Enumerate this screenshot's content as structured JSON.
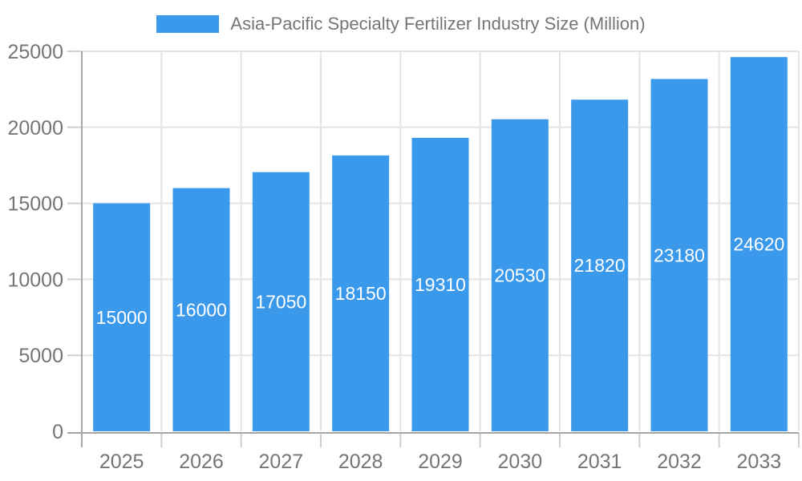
{
  "chart_data": {
    "type": "bar",
    "title": "Asia-Pacific Specialty Fertilizer Industry Size (Million)",
    "legend_position": "top",
    "categories": [
      "2025",
      "2026",
      "2027",
      "2028",
      "2029",
      "2030",
      "2031",
      "2032",
      "2033"
    ],
    "values": [
      15000,
      16000,
      17050,
      18150,
      19310,
      20530,
      21820,
      23180,
      24620
    ],
    "xlabel": "",
    "ylabel": "",
    "ylim": [
      0,
      25000
    ],
    "ytick_step": 5000,
    "ytick_labels": [
      "0",
      "5000",
      "10000",
      "15000",
      "20000",
      "25000"
    ],
    "grid": true,
    "colors": {
      "bar": "#3B99EC",
      "value_label": "#FFFFFF",
      "axis_line": "#A6A6A6",
      "gridline": "#E4E4E4",
      "tick": "#CFCFCF",
      "axis_text": "#757575",
      "legend_text": "#757575",
      "background": "#FFFFFF"
    }
  }
}
